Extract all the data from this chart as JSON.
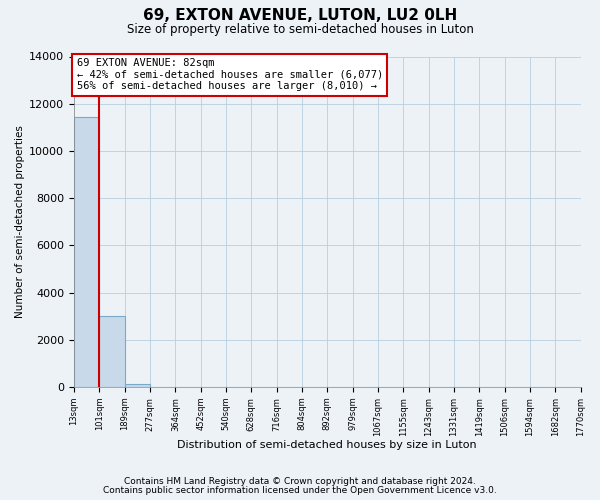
{
  "title": "69, EXTON AVENUE, LUTON, LU2 0LH",
  "subtitle": "Size of property relative to semi-detached houses in Luton",
  "xlabel": "Distribution of semi-detached houses by size in Luton",
  "ylabel": "Number of semi-detached properties",
  "bar_values": [
    11450,
    3020,
    130,
    0,
    0,
    0,
    0,
    0,
    0,
    0,
    0,
    0,
    0,
    0,
    0,
    0,
    0,
    0,
    0,
    0
  ],
  "bar_labels": [
    "13sqm",
    "101sqm",
    "189sqm",
    "277sqm",
    "364sqm",
    "452sqm",
    "540sqm",
    "628sqm",
    "716sqm",
    "804sqm",
    "892sqm",
    "979sqm",
    "1067sqm",
    "1155sqm",
    "1243sqm",
    "1331sqm",
    "1419sqm",
    "1506sqm",
    "1594sqm",
    "1682sqm",
    "1770sqm"
  ],
  "bar_color": "#c8d9ea",
  "bar_edge_color": "#7aaac8",
  "property_line_x": 1,
  "property_line_color": "#cc0000",
  "annotation_title": "69 EXTON AVENUE: 82sqm",
  "annotation_line1": "← 42% of semi-detached houses are smaller (6,077)",
  "annotation_line2": "56% of semi-detached houses are larger (8,010) →",
  "annotation_box_color": "#ffffff",
  "annotation_box_edge": "#cc0000",
  "ylim": [
    0,
    14000
  ],
  "yticks": [
    0,
    2000,
    4000,
    6000,
    8000,
    10000,
    12000,
    14000
  ],
  "footer1": "Contains HM Land Registry data © Crown copyright and database right 2024.",
  "footer2": "Contains public sector information licensed under the Open Government Licence v3.0.",
  "background_color": "#edf2f7",
  "grid_color": "#b8cfe0"
}
